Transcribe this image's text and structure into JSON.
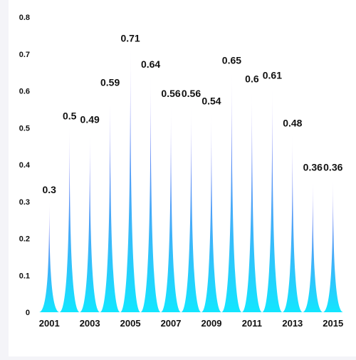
{
  "chart_data": {
    "type": "bar",
    "bar_style": "pictorial-spike",
    "categories": [
      "2001",
      "2002",
      "2003",
      "2004",
      "2005",
      "2006",
      "2007",
      "2008",
      "2009",
      "2010",
      "2011",
      "2012",
      "2013",
      "2014",
      "2015"
    ],
    "values": [
      0.3,
      0.5,
      0.49,
      0.59,
      0.71,
      0.64,
      0.56,
      0.56,
      0.54,
      0.65,
      0.6,
      0.61,
      0.48,
      0.36,
      0.36
    ],
    "x_tick_labels": [
      "2001",
      "2003",
      "2005",
      "2007",
      "2009",
      "2011",
      "2013",
      "2015"
    ],
    "y_ticks": [
      "0",
      "0.1",
      "0.2",
      "0.3",
      "0.4",
      "0.5",
      "0.6",
      "0.7",
      "0.8"
    ],
    "ylim": [
      0,
      0.8
    ],
    "title": "",
    "xlabel": "",
    "ylabel": "",
    "grid": false,
    "legend": "none",
    "gradient": {
      "top": "#8a5cf0",
      "bottom": "#12e6ff"
    }
  }
}
